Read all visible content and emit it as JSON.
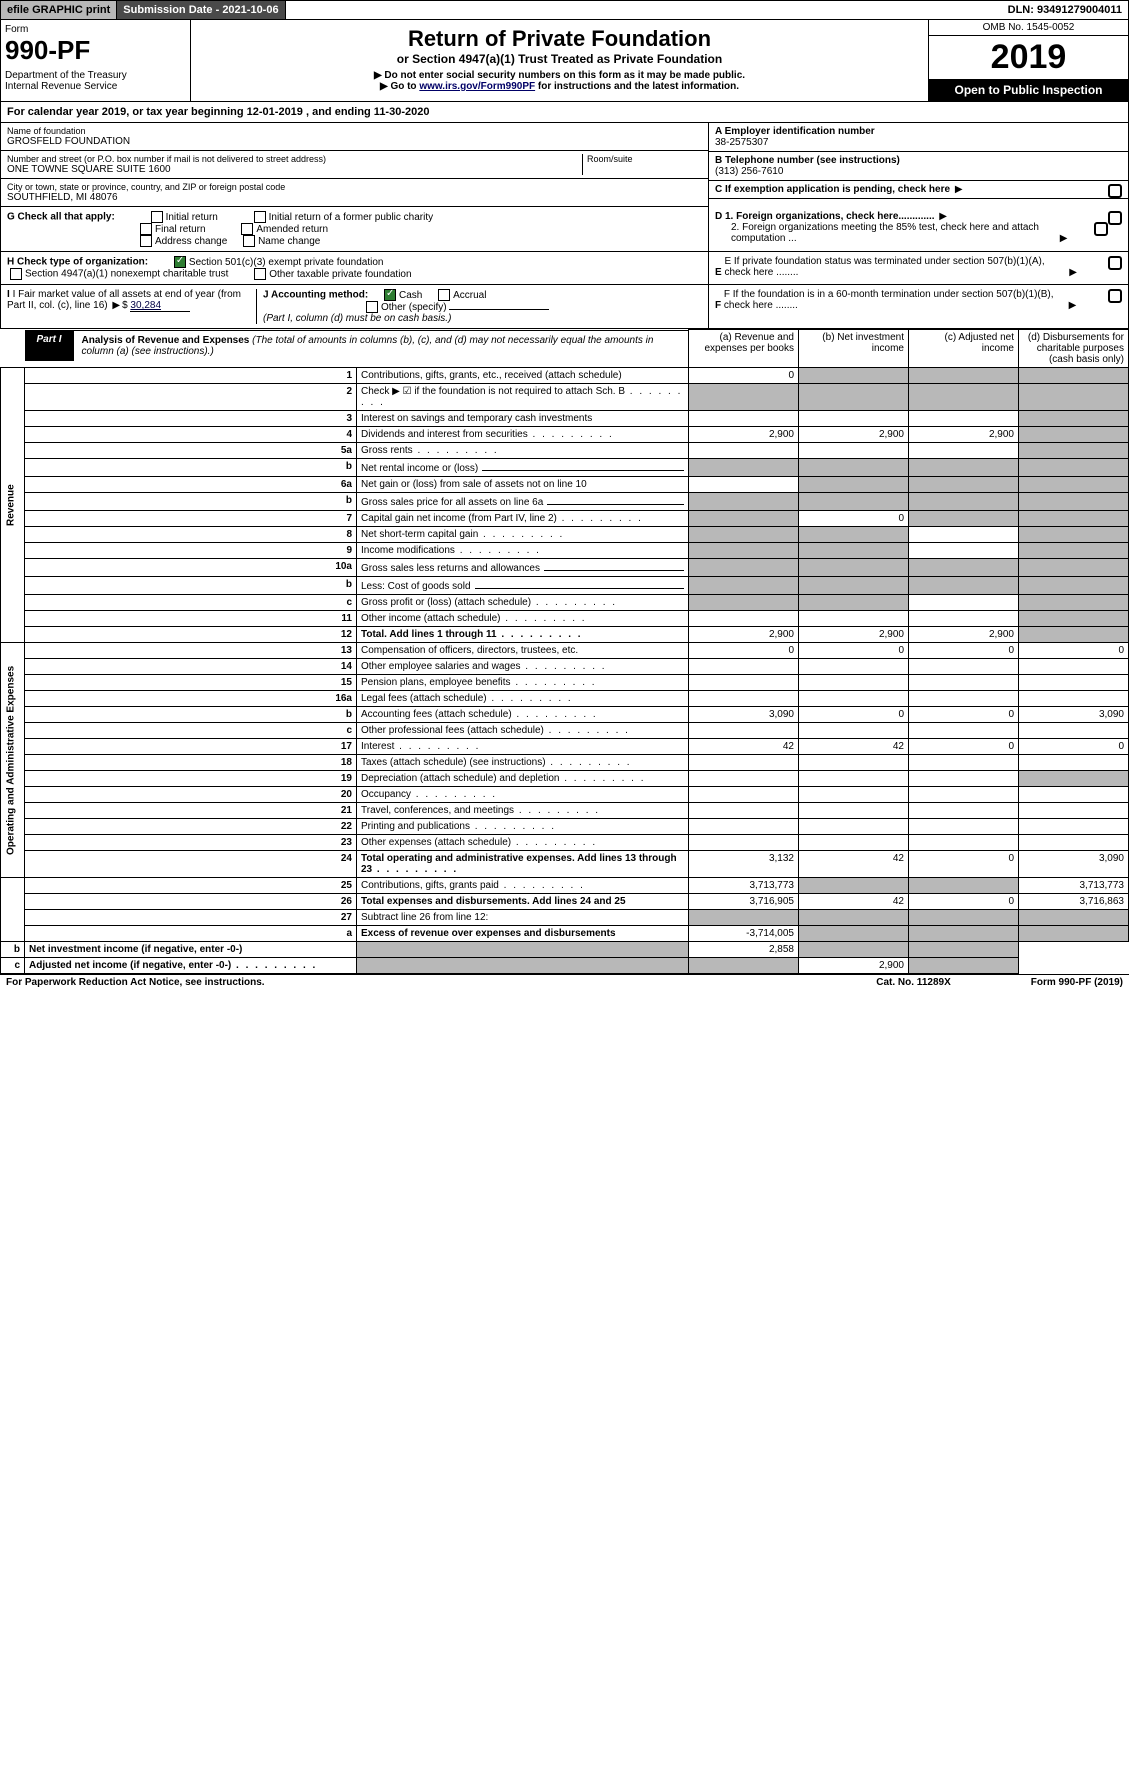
{
  "topbar": {
    "efile": "efile GRAPHIC print",
    "subdate": "Submission Date - 2021-10-06",
    "dln": "DLN: 93491279004011"
  },
  "header": {
    "form_label": "Form",
    "form_num": "990-PF",
    "dept": "Department of the Treasury\nInternal Revenue Service",
    "title1": "Return of Private Foundation",
    "title2": "or Section 4947(a)(1) Trust Treated as Private Foundation",
    "instr1": "▶ Do not enter social security numbers on this form as it may be made public.",
    "instr2_pre": "▶ Go to ",
    "instr2_link": "www.irs.gov/Form990PF",
    "instr2_post": " for instructions and the latest information.",
    "omb": "OMB No. 1545-0052",
    "year": "2019",
    "open": "Open to Public Inspection"
  },
  "calyear": "For calendar year 2019, or tax year beginning 12-01-2019          , and ending 11-30-2020",
  "name": {
    "lbl": "Name of foundation",
    "val": "GROSFELD FOUNDATION"
  },
  "addr": {
    "lbl": "Number and street (or P.O. box number if mail is not delivered to street address)",
    "val": "ONE TOWNE SQUARE SUITE 1600",
    "room": "Room/suite"
  },
  "city": {
    "lbl": "City or town, state or province, country, and ZIP or foreign postal code",
    "val": "SOUTHFIELD, MI  48076"
  },
  "ein": {
    "lbl": "A Employer identification number",
    "val": "38-2575307"
  },
  "phone": {
    "lbl": "B Telephone number (see instructions)",
    "val": "(313) 256-7610"
  },
  "c": "C If exemption application is pending, check here",
  "d1": "D 1. Foreign organizations, check here.............",
  "d2": "2. Foreign organizations meeting the 85% test, check here and attach computation ...",
  "e": "E If private foundation status was terminated under section 507(b)(1)(A), check here ........",
  "f": "F If the foundation is in a 60-month termination under section 507(b)(1)(B), check here ........",
  "g": {
    "lbl": "G Check all that apply:",
    "opts": [
      "Initial return",
      "Initial return of a former public charity",
      "Final return",
      "Amended return",
      "Address change",
      "Name change"
    ]
  },
  "h": {
    "lbl": "H Check type of organization:",
    "o1": "Section 501(c)(3) exempt private foundation",
    "o2": "Section 4947(a)(1) nonexempt charitable trust",
    "o3": "Other taxable private foundation"
  },
  "i": {
    "lbl": "I Fair market value of all assets at end of year (from Part II, col. (c), line 16)",
    "val": "30,284"
  },
  "j": {
    "lbl": "J Accounting method:",
    "o1": "Cash",
    "o2": "Accrual",
    "o3": "Other (specify)",
    "note": "(Part I, column (d) must be on cash basis.)"
  },
  "part1": {
    "tab": "Part I",
    "title": "Analysis of Revenue and Expenses",
    "sub": " (The total of amounts in columns (b), (c), and (d) may not necessarily equal the amounts in column (a) (see instructions).)",
    "cols": {
      "a": "(a)   Revenue and expenses per books",
      "b": "(b)  Net investment income",
      "c": "(c)  Adjusted net income",
      "d": "(d)  Disbursements for charitable purposes (cash basis only)"
    }
  },
  "vlabels": {
    "rev": "Revenue",
    "exp": "Operating and Administrative Expenses"
  },
  "rows": [
    {
      "n": "1",
      "d": "Contributions, gifts, grants, etc., received (attach schedule)",
      "a": "0",
      "shade": [
        "b",
        "c",
        "d"
      ]
    },
    {
      "n": "2",
      "d": "Check ▶ ☑ if the foundation is not required to attach Sch. B",
      "dots": true,
      "shade": [
        "a",
        "b",
        "c",
        "d"
      ]
    },
    {
      "n": "3",
      "d": "Interest on savings and temporary cash investments",
      "shade": [
        "d"
      ]
    },
    {
      "n": "4",
      "d": "Dividends and interest from securities",
      "dots": true,
      "a": "2,900",
      "b": "2,900",
      "c": "2,900",
      "shade": [
        "d"
      ]
    },
    {
      "n": "5a",
      "d": "Gross rents",
      "dots": true,
      "shade": [
        "d"
      ]
    },
    {
      "n": "b",
      "d": "Net rental income or (loss)",
      "fill": true,
      "shade": [
        "a",
        "b",
        "c",
        "d"
      ]
    },
    {
      "n": "6a",
      "d": "Net gain or (loss) from sale of assets not on line 10",
      "shade": [
        "b",
        "c",
        "d"
      ]
    },
    {
      "n": "b",
      "d": "Gross sales price for all assets on line 6a",
      "fill": true,
      "shade": [
        "a",
        "b",
        "c",
        "d"
      ]
    },
    {
      "n": "7",
      "d": "Capital gain net income (from Part IV, line 2)",
      "dots": true,
      "b": "0",
      "shade": [
        "a",
        "c",
        "d"
      ]
    },
    {
      "n": "8",
      "d": "Net short-term capital gain",
      "dots": true,
      "shade": [
        "a",
        "b",
        "d"
      ]
    },
    {
      "n": "9",
      "d": "Income modifications",
      "dots": true,
      "shade": [
        "a",
        "b",
        "d"
      ]
    },
    {
      "n": "10a",
      "d": "Gross sales less returns and allowances",
      "fill": true,
      "shade": [
        "a",
        "b",
        "c",
        "d"
      ]
    },
    {
      "n": "b",
      "d": "Less: Cost of goods sold",
      "dots": true,
      "fill": true,
      "shade": [
        "a",
        "b",
        "c",
        "d"
      ]
    },
    {
      "n": "c",
      "d": "Gross profit or (loss) (attach schedule)",
      "dots": true,
      "shade": [
        "a",
        "b",
        "d"
      ]
    },
    {
      "n": "11",
      "d": "Other income (attach schedule)",
      "dots": true,
      "shade": [
        "d"
      ]
    },
    {
      "n": "12",
      "d": "Total. Add lines 1 through 11",
      "dots": true,
      "bold": true,
      "a": "2,900",
      "b": "2,900",
      "c": "2,900",
      "shade": [
        "d"
      ]
    },
    {
      "n": "13",
      "d": "Compensation of officers, directors, trustees, etc.",
      "a": "0",
      "b": "0",
      "c": "0",
      "dv": "0"
    },
    {
      "n": "14",
      "d": "Other employee salaries and wages",
      "dots": true
    },
    {
      "n": "15",
      "d": "Pension plans, employee benefits",
      "dots": true
    },
    {
      "n": "16a",
      "d": "Legal fees (attach schedule)",
      "dots": true
    },
    {
      "n": "b",
      "d": "Accounting fees (attach schedule)",
      "dots": true,
      "a": "3,090",
      "b": "0",
      "c": "0",
      "dv": "3,090"
    },
    {
      "n": "c",
      "d": "Other professional fees (attach schedule)",
      "dots": true
    },
    {
      "n": "17",
      "d": "Interest",
      "dots": true,
      "a": "42",
      "b": "42",
      "c": "0",
      "dv": "0"
    },
    {
      "n": "18",
      "d": "Taxes (attach schedule) (see instructions)",
      "dots": true
    },
    {
      "n": "19",
      "d": "Depreciation (attach schedule) and depletion",
      "dots": true,
      "shade": [
        "d"
      ]
    },
    {
      "n": "20",
      "d": "Occupancy",
      "dots": true
    },
    {
      "n": "21",
      "d": "Travel, conferences, and meetings",
      "dots": true
    },
    {
      "n": "22",
      "d": "Printing and publications",
      "dots": true
    },
    {
      "n": "23",
      "d": "Other expenses (attach schedule)",
      "dots": true
    },
    {
      "n": "24",
      "d": "Total operating and administrative expenses. Add lines 13 through 23",
      "dots": true,
      "bold": true,
      "a": "3,132",
      "b": "42",
      "c": "0",
      "dv": "3,090"
    },
    {
      "n": "25",
      "d": "Contributions, gifts, grants paid",
      "dots": true,
      "a": "3,713,773",
      "shade": [
        "b",
        "c"
      ],
      "dv": "3,713,773"
    },
    {
      "n": "26",
      "d": "Total expenses and disbursements. Add lines 24 and 25",
      "bold": true,
      "a": "3,716,905",
      "b": "42",
      "c": "0",
      "dv": "3,716,863"
    },
    {
      "n": "27",
      "d": "Subtract line 26 from line 12:",
      "shade": [
        "a",
        "b",
        "c",
        "d"
      ]
    },
    {
      "n": "a",
      "d": "Excess of revenue over expenses and disbursements",
      "bold": true,
      "a": "-3,714,005",
      "shade": [
        "b",
        "c",
        "d"
      ]
    },
    {
      "n": "b",
      "d": "Net investment income (if negative, enter -0-)",
      "bold": true,
      "b": "2,858",
      "shade": [
        "a",
        "c",
        "d"
      ]
    },
    {
      "n": "c",
      "d": "Adjusted net income (if negative, enter -0-)",
      "bold": true,
      "dots": true,
      "c": "2,900",
      "shade": [
        "a",
        "b",
        "d"
      ]
    }
  ],
  "footer": {
    "l": "For Paperwork Reduction Act Notice, see instructions.",
    "m": "Cat. No. 11289X",
    "r": "Form 990-PF (2019)"
  }
}
